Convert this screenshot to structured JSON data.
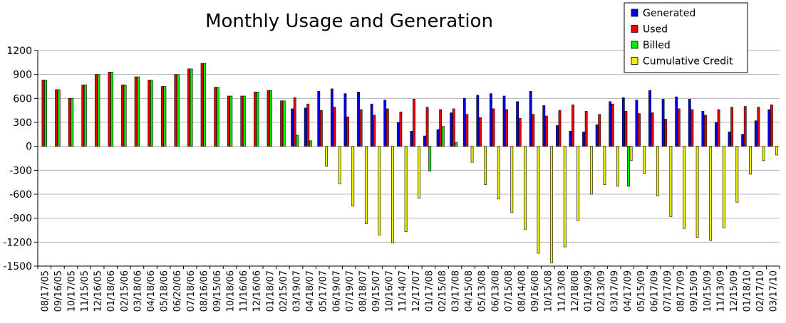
{
  "chart_data": {
    "type": "bar",
    "title": "Monthly Usage and Generation",
    "ylim": [
      -1500,
      1200
    ],
    "yticks": [
      1200,
      900,
      600,
      300,
      0,
      -300,
      -600,
      -900,
      -1200,
      -1500
    ],
    "grid": true,
    "legend_position": "top-right",
    "categories": [
      "08/17/05",
      "09/16/05",
      "10/17/05",
      "11/15/05",
      "12/16/05",
      "01/18/06",
      "02/15/06",
      "03/18/06",
      "04/18/06",
      "05/18/06",
      "06/20/06",
      "07/18/06",
      "08/16/06",
      "09/15/06",
      "10/18/06",
      "11/16/06",
      "12/16/06",
      "01/18/07",
      "02/15/07",
      "03/19/07",
      "04/18/07",
      "05/17/07",
      "06/19/07",
      "07/19/07",
      "08/18/07",
      "09/15/07",
      "10/16/07",
      "11/14/07",
      "12/17/07",
      "01/17/08",
      "02/15/08",
      "03/17/08",
      "04/15/08",
      "05/13/08",
      "06/13/08",
      "07/15/08",
      "08/14/08",
      "09/16/08",
      "10/15/08",
      "11/13/08",
      "12/18/08",
      "01/19/09",
      "02/13/09",
      "03/17/09",
      "04/17/09",
      "05/15/09",
      "06/17/09",
      "07/17/09",
      "08/17/09",
      "09/15/09",
      "10/15/09",
      "11/13/09",
      "12/15/09",
      "01/18/10",
      "02/17/10",
      "03/17/10"
    ],
    "series": [
      {
        "name": "Generated",
        "color": "#0000ee",
        "values": [
          0,
          0,
          0,
          0,
          0,
          0,
          0,
          0,
          0,
          0,
          0,
          0,
          0,
          0,
          0,
          0,
          0,
          0,
          0,
          470,
          480,
          690,
          720,
          660,
          680,
          530,
          580,
          300,
          190,
          130,
          210,
          420,
          600,
          640,
          660,
          630,
          560,
          690,
          510,
          260,
          190,
          180,
          270,
          560,
          610,
          580,
          700,
          590,
          620,
          590,
          440,
          300,
          180,
          150,
          320,
          460
        ]
      },
      {
        "name": "Used",
        "color": "#ee0000",
        "values": [
          830,
          710,
          600,
          770,
          900,
          930,
          770,
          870,
          830,
          750,
          900,
          970,
          1040,
          740,
          630,
          630,
          680,
          700,
          570,
          610,
          530,
          450,
          490,
          370,
          460,
          390,
          470,
          430,
          590,
          490,
          460,
          470,
          400,
          360,
          470,
          460,
          350,
          400,
          380,
          450,
          520,
          440,
          400,
          530,
          440,
          410,
          420,
          340,
          470,
          460,
          390,
          460,
          490,
          500,
          490,
          520
        ]
      },
      {
        "name": "Billed",
        "color": "#00ee00",
        "values": [
          830,
          710,
          600,
          770,
          900,
          930,
          770,
          870,
          830,
          750,
          900,
          970,
          1040,
          740,
          630,
          630,
          680,
          700,
          570,
          140,
          70,
          0,
          0,
          0,
          0,
          0,
          0,
          0,
          0,
          -310,
          250,
          50,
          0,
          0,
          0,
          0,
          0,
          0,
          0,
          0,
          0,
          0,
          0,
          0,
          -500,
          0,
          0,
          0,
          0,
          0,
          0,
          0,
          0,
          0,
          0,
          0
        ]
      },
      {
        "name": "Cumulative Credit",
        "color": "#eeee00",
        "values": [
          0,
          0,
          0,
          0,
          0,
          0,
          0,
          0,
          0,
          0,
          0,
          0,
          0,
          0,
          0,
          0,
          0,
          0,
          0,
          0,
          0,
          -250,
          -470,
          -750,
          -970,
          -1110,
          -1210,
          -1070,
          -650,
          0,
          0,
          0,
          -200,
          -480,
          -660,
          -830,
          -1040,
          -1340,
          -1460,
          -1260,
          -930,
          -600,
          -480,
          -500,
          -180,
          -340,
          -620,
          -880,
          -1030,
          -1140,
          -1180,
          -1020,
          -700,
          -350,
          -180,
          -110
        ]
      }
    ]
  }
}
